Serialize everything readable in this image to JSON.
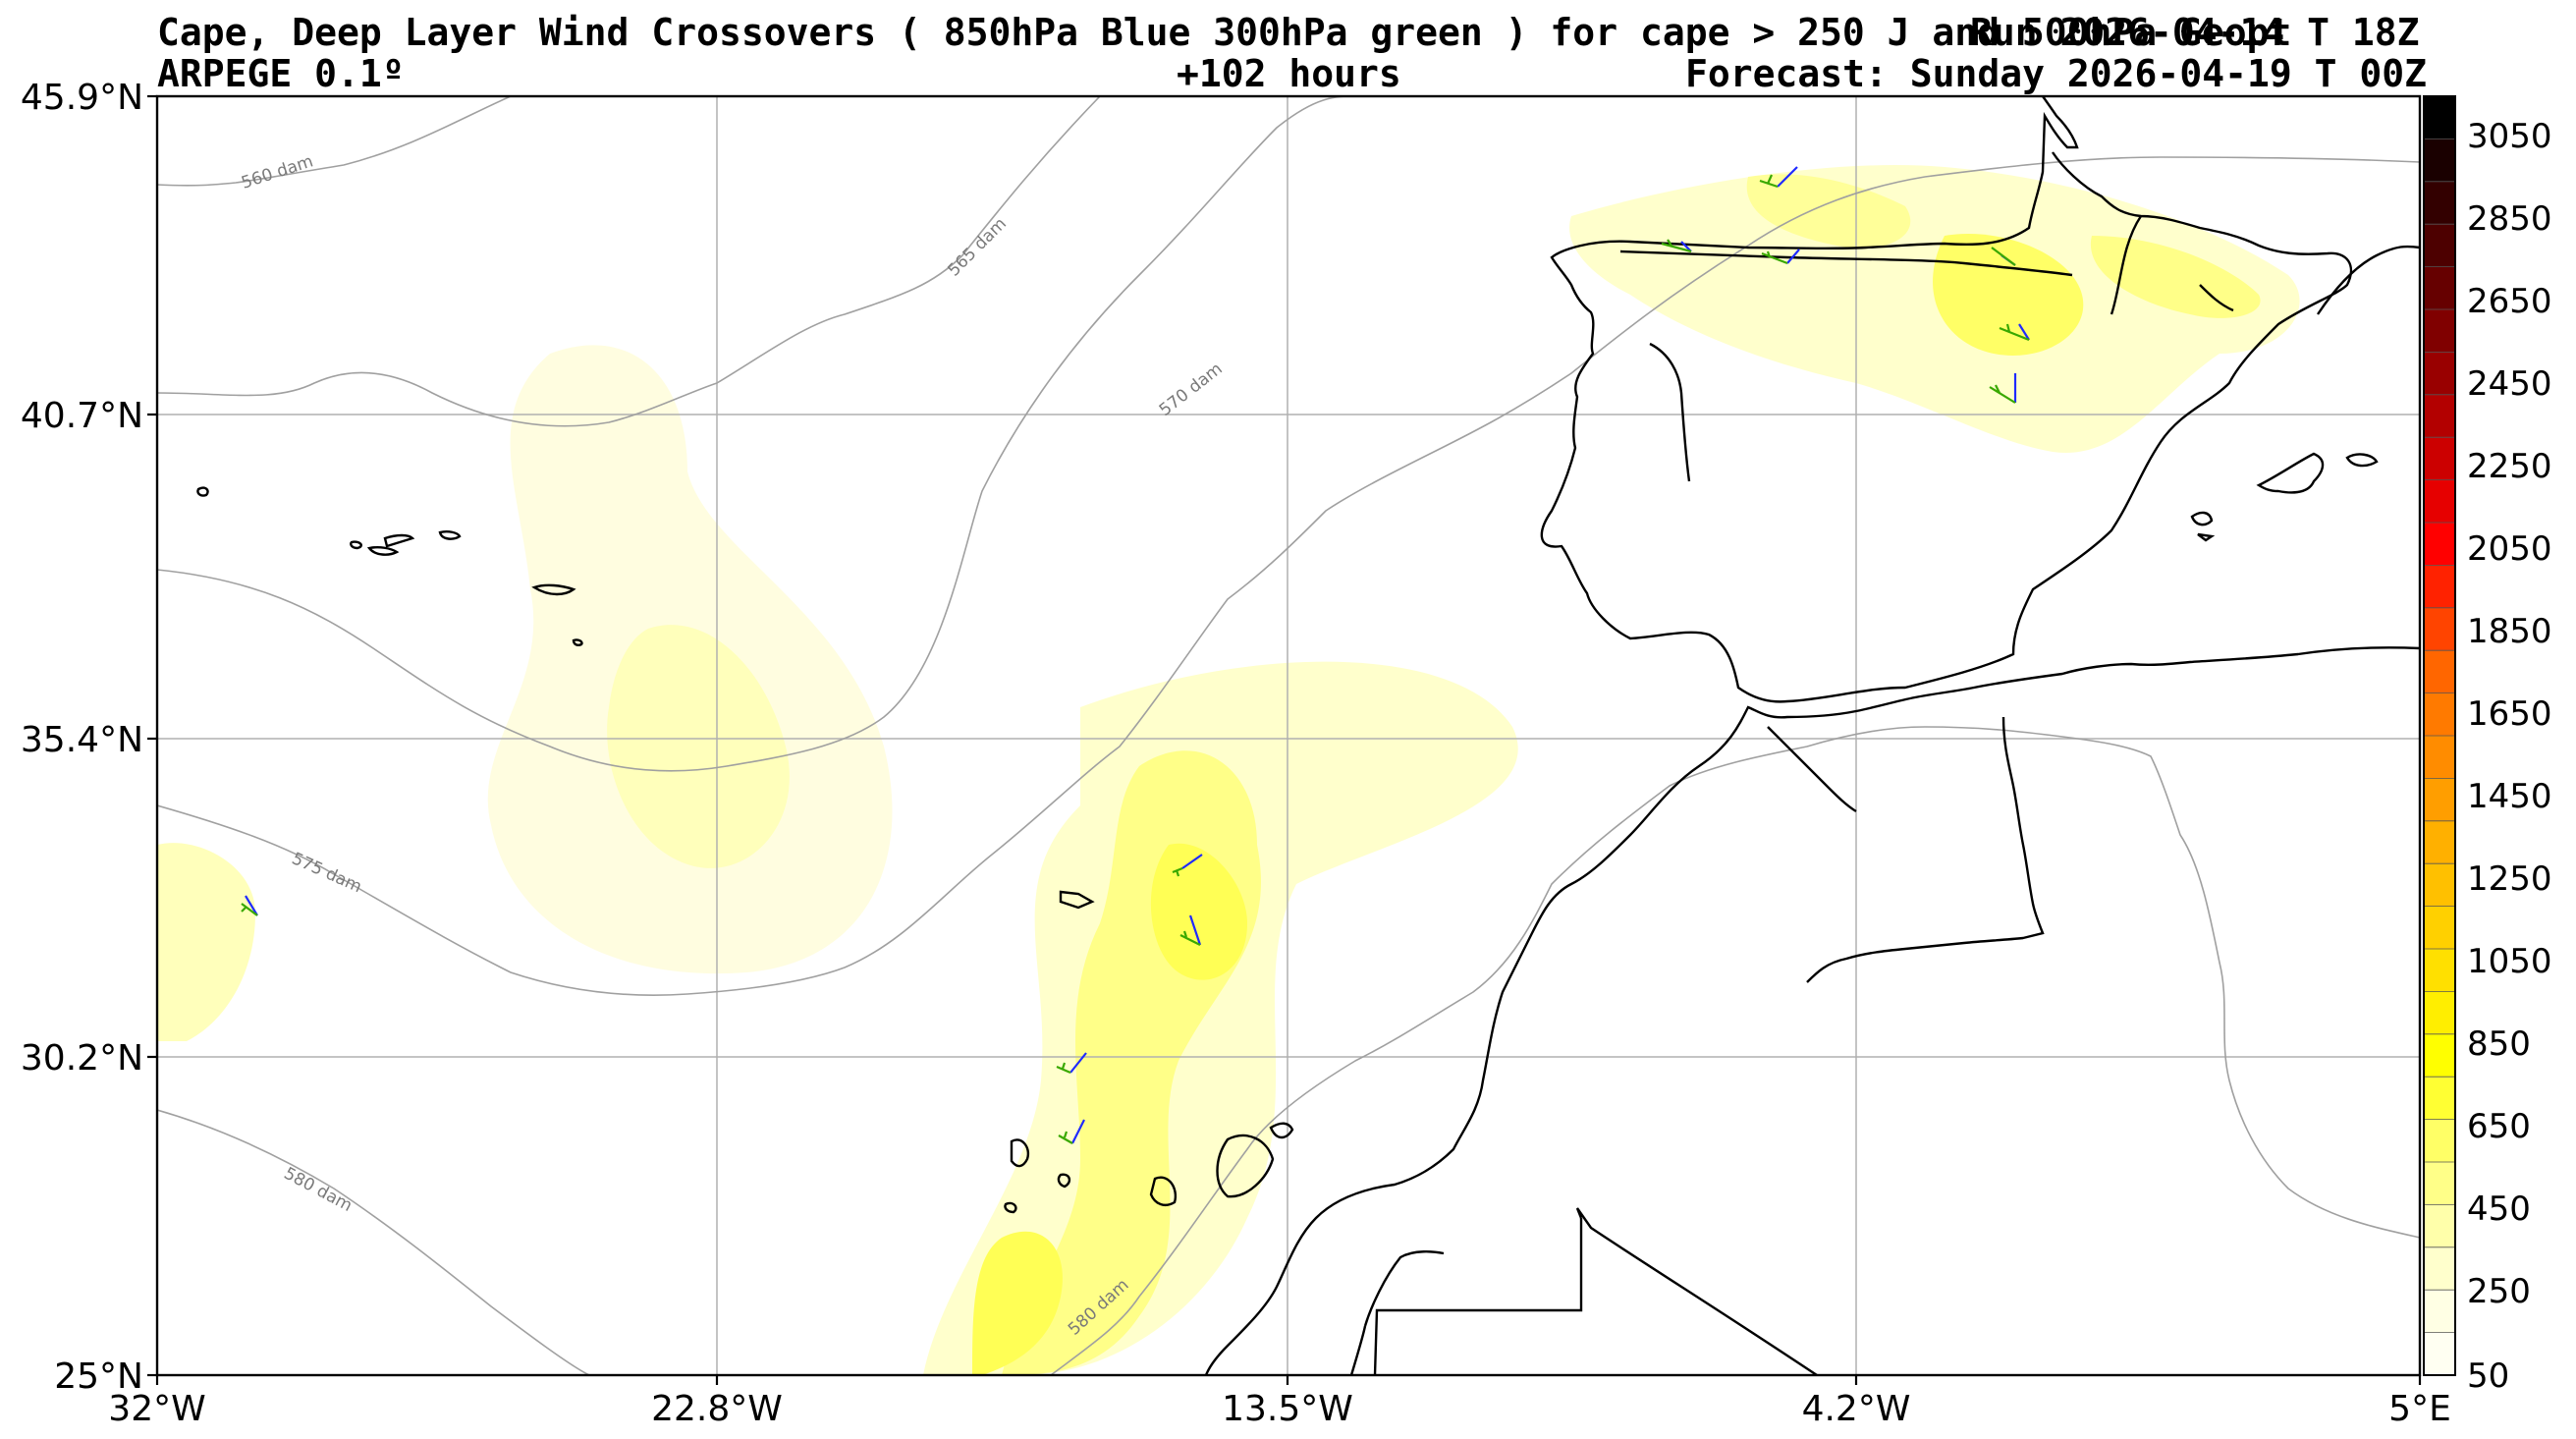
{
  "header": {
    "title": "Cape, Deep Layer Wind Crossovers ( 850hPa Blue 300hPa green ) for cape > 250 J and 500hPa Geopt",
    "run": "Run 2026-04-14 T 18Z",
    "model": "ARPEGE 0.1º",
    "lead": "+102 hours",
    "forecast": "Forecast: Sunday 2026-04-19 T 00Z"
  },
  "axes": {
    "lat_labels": [
      "45.9°N",
      "40.7°N",
      "35.4°N",
      "30.2°N",
      "25°N"
    ],
    "lon_labels": [
      "32°W",
      "22.8°W",
      "13.5°W",
      "4.2°W",
      "5°E"
    ]
  },
  "contours": {
    "labels": [
      "560 dam",
      "565 dam",
      "570 dam",
      "575 dam",
      "580 dam",
      "580 dam"
    ]
  },
  "colorbar": {
    "labels": [
      "3050",
      "2850",
      "2650",
      "2450",
      "2250",
      "2050",
      "1850",
      "1650",
      "1450",
      "1250",
      "1050",
      "850",
      "650",
      "450",
      "250",
      "50"
    ],
    "colors": [
      "#000000",
      "#1a0000",
      "#330000",
      "#4d0000",
      "#660000",
      "#800000",
      "#990000",
      "#b30000",
      "#cc0000",
      "#e60000",
      "#ff0000",
      "#ff2200",
      "#ff4400",
      "#ff6600",
      "#ff7a00",
      "#ff8c00",
      "#ff9e00",
      "#ffb000",
      "#ffc000",
      "#ffd000",
      "#ffe000",
      "#ffee00",
      "#ffff00",
      "#ffff33",
      "#ffff66",
      "#ffff88",
      "#ffffaa",
      "#ffffcc",
      "#ffffe4",
      "#fffff2"
    ]
  }
}
